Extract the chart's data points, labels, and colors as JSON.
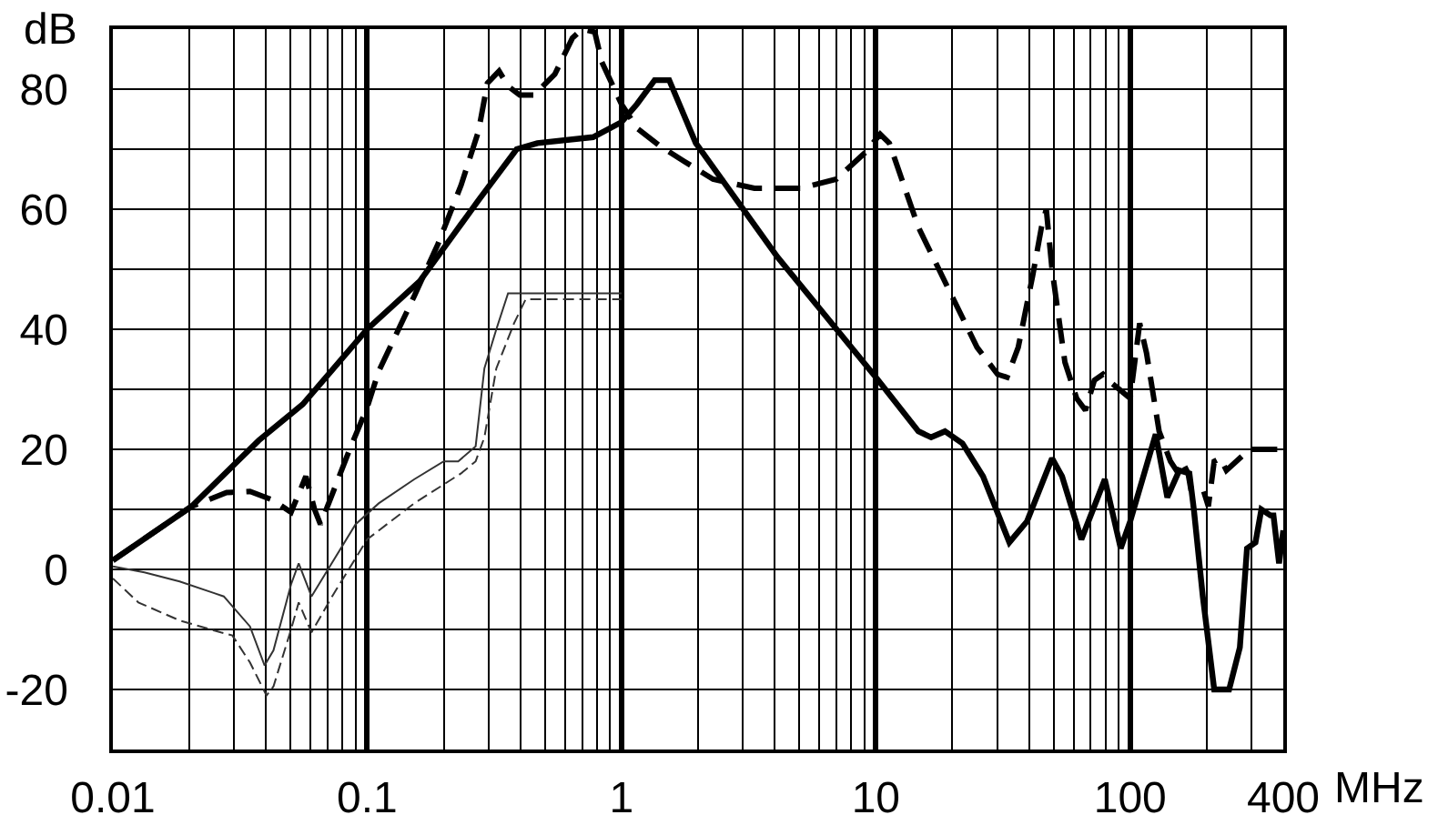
{
  "chart_data": {
    "type": "line",
    "xlabel": "MHz",
    "ylabel": "dB",
    "log": "x",
    "grid": true,
    "xlim": [
      0.01,
      400
    ],
    "ylim": [
      -30,
      90
    ],
    "xticks": [
      0.01,
      {
        "value": 0.02,
        "label": null
      },
      {
        "value": 0.03,
        "label": null
      },
      {
        "value": 0.04,
        "label": null
      },
      {
        "value": 0.05,
        "label": null
      },
      {
        "value": 0.06,
        "label": null
      },
      {
        "value": 0.07,
        "label": null
      },
      {
        "value": 0.08,
        "label": null
      },
      {
        "value": 0.09,
        "label": null
      },
      0.1,
      {
        "value": 0.2,
        "label": null
      },
      {
        "value": 0.3,
        "label": null
      },
      {
        "value": 0.4,
        "label": null
      },
      {
        "value": 0.5,
        "label": null
      },
      {
        "value": 0.6,
        "label": null
      },
      {
        "value": 0.7,
        "label": null
      },
      {
        "value": 0.8,
        "label": null
      },
      {
        "value": 0.9,
        "label": null
      },
      1,
      {
        "value": 2,
        "label": null
      },
      {
        "value": 3,
        "label": null
      },
      {
        "value": 4,
        "label": null
      },
      {
        "value": 5,
        "label": null
      },
      {
        "value": 6,
        "label": null
      },
      {
        "value": 7,
        "label": null
      },
      {
        "value": 8,
        "label": null
      },
      {
        "value": 9,
        "label": null
      },
      10,
      {
        "value": 20,
        "label": null
      },
      {
        "value": 30,
        "label": null
      },
      {
        "value": 40,
        "label": null
      },
      {
        "value": 50,
        "label": null
      },
      {
        "value": 60,
        "label": null
      },
      {
        "value": 70,
        "label": null
      },
      {
        "value": 80,
        "label": null
      },
      {
        "value": 90,
        "label": null
      },
      100,
      {
        "value": 200,
        "label": null
      },
      {
        "value": 300,
        "label": null
      },
      400
    ],
    "yticks": [
      {
        "value": -30,
        "label": null
      },
      -20,
      {
        "value": -10,
        "label": null
      },
      0,
      {
        "value": 10,
        "label": null
      },
      20,
      {
        "value": 30,
        "label": null
      },
      40,
      {
        "value": 50,
        "label": null
      },
      60,
      {
        "value": 70,
        "label": null
      },
      80,
      {
        "value": 90,
        "label": null
      }
    ],
    "series": [
      {
        "color": "#000000",
        "line_style": "solid",
        "x": [
          0.01,
          0.0204,
          0.0375,
          0.0558,
          0.1,
          0.161,
          0.234,
          0.274,
          0.387,
          0.467,
          0.773,
          1,
          1.15,
          1.35,
          1.54,
          1.96,
          4.11,
          10,
          14.7,
          16.5,
          18.7,
          21.9,
          26.4,
          33.5,
          39.3,
          49.3,
          54,
          64.3,
          79.5,
          91.8,
          100,
          126,
          140,
          156,
          171,
          178,
          193,
          214,
          245,
          270,
          288,
          311,
          328,
          356,
          366,
          385,
          400
        ],
        "values": [
          1.5,
          10.5,
          21.5,
          27.5,
          40,
          48,
          57.5,
          61.5,
          70,
          71,
          72,
          74.5,
          77.5,
          81.5,
          81.5,
          71,
          52,
          32,
          23,
          22,
          23,
          21,
          15.5,
          4.5,
          8,
          18.5,
          15.5,
          5,
          15,
          3.5,
          8,
          22.5,
          12,
          16.5,
          16,
          10,
          -4.5,
          -20,
          -20,
          -13,
          3.5,
          4.5,
          10,
          9,
          9,
          1,
          6.5
        ]
      },
      {
        "color": "#000000",
        "line_style": "dashed",
        "x": [
          0.01,
          0.0204,
          0.028,
          0.0346,
          0.0428,
          0.0502,
          0.0574,
          0.0621,
          0.0655,
          0.0854,
          0.1,
          0.111,
          0.153,
          0.189,
          0.234,
          0.274,
          0.297,
          0.33,
          0.358,
          0.398,
          0.452,
          0.547,
          0.641,
          0.7,
          0.785,
          0.837,
          1,
          1.15,
          1.42,
          1.76,
          2.29,
          3.33,
          5.08,
          6.99,
          9.12,
          10.4,
          11.3,
          14.7,
          20.2,
          25,
          30.1,
          32.8,
          36.3,
          41.4,
          44.8,
          46.8,
          49.3,
          55.4,
          61.6,
          66.7,
          72.3,
          78.2,
          84.7,
          100,
          109,
          116,
          130,
          144,
          152,
          160,
          169,
          173,
          193,
          203,
          214,
          226,
          239,
          295,
          400
        ],
        "values": [
          1.5,
          10.5,
          12.8,
          13,
          11.5,
          9.5,
          15.5,
          10,
          7.5,
          20,
          27,
          33,
          45.5,
          54,
          64,
          73,
          81,
          83,
          80.5,
          79,
          79,
          82.5,
          88.5,
          90,
          89.5,
          84.5,
          77.5,
          73.5,
          70.5,
          68,
          65,
          63.5,
          63.5,
          65,
          69.5,
          72.5,
          71,
          57,
          45,
          37,
          32.5,
          32,
          37,
          49,
          57,
          60,
          50,
          34.5,
          28.5,
          26.5,
          31.5,
          32.5,
          31,
          28.5,
          41,
          36,
          23,
          18,
          16.5,
          18,
          16,
          13.5,
          13.5,
          10.5,
          18,
          18.5,
          16.5,
          20,
          20
        ]
      },
      {
        "color": "#333333",
        "line_style": "solid",
        "x": [
          0.01,
          0.0133,
          0.0183,
          0.0252,
          0.0273,
          0.0346,
          0.0395,
          0.0428,
          0.0502,
          0.0538,
          0.0604,
          0.069,
          0.09,
          0.111,
          0.153,
          0.2,
          0.228,
          0.267,
          0.289,
          0.322,
          0.358,
          1
        ],
        "values": [
          0.5,
          -0.5,
          -2,
          -4,
          -4.5,
          -9.5,
          -16,
          -13.5,
          -2.5,
          1,
          -4.5,
          -0.5,
          7.5,
          11,
          15,
          18,
          18,
          20.5,
          33.5,
          40,
          46,
          46
        ]
      },
      {
        "color": "#333333",
        "line_style": "dashed",
        "x": [
          0.01,
          0.0126,
          0.0183,
          0.0266,
          0.0295,
          0.0346,
          0.0402,
          0.0428,
          0.0502,
          0.0538,
          0.0604,
          0.0728,
          0.1,
          0.153,
          0.234,
          0.267,
          0.289,
          0.322,
          0.378,
          0.42,
          1
        ],
        "values": [
          -1.5,
          -5.5,
          -8.5,
          -10.5,
          -11,
          -15.5,
          -21,
          -19.5,
          -10,
          -5.5,
          -10.5,
          -4.5,
          5,
          11,
          16,
          18,
          22,
          33.5,
          41,
          45,
          45
        ]
      }
    ]
  }
}
